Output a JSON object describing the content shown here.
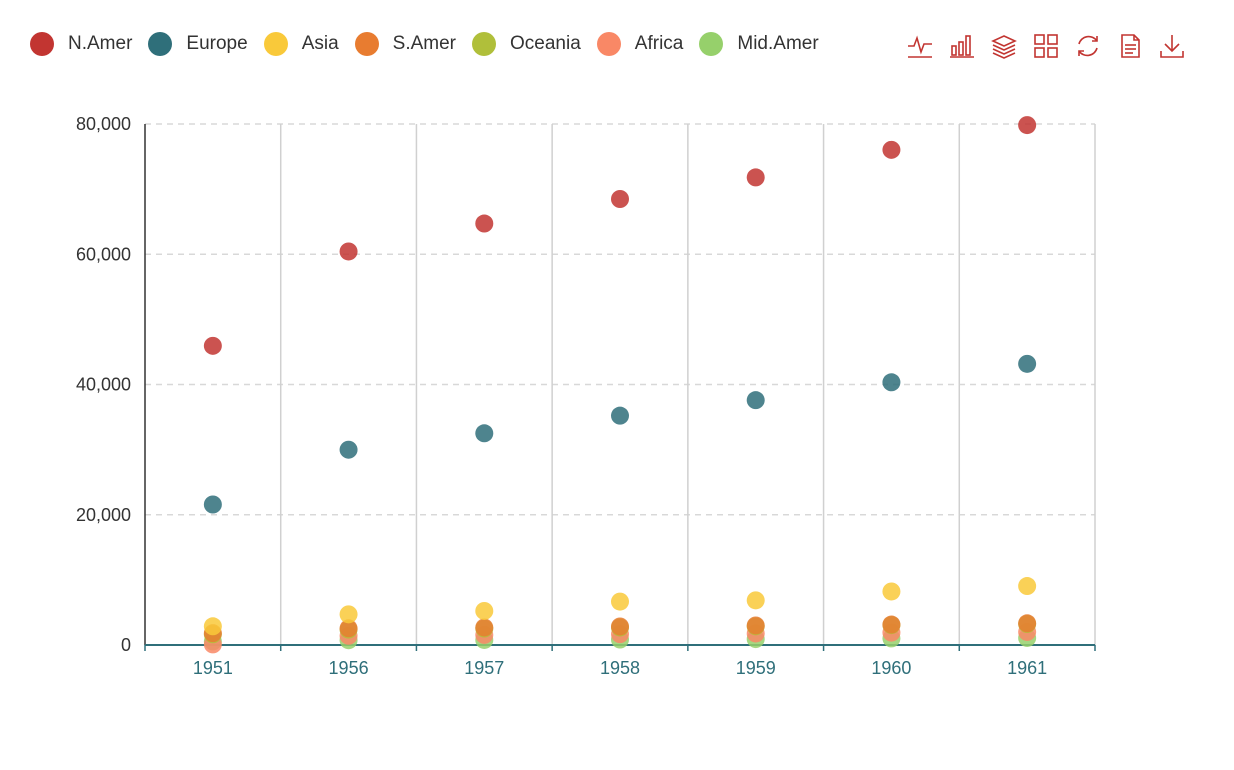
{
  "chart_data": {
    "type": "scatter",
    "categories": [
      "1951",
      "1956",
      "1957",
      "1958",
      "1959",
      "1960",
      "1961"
    ],
    "ylim": [
      0,
      80000
    ],
    "yticks": [
      0,
      20000,
      40000,
      60000,
      80000
    ],
    "ytick_labels": [
      "0",
      "20,000",
      "40,000",
      "60,000",
      "80,000"
    ],
    "grid": "horizontal dashed, vertical category separators",
    "legend_position": "top-left",
    "series": [
      {
        "name": "N.Amer",
        "color": "#c23531",
        "values": [
          45939,
          60423,
          64721,
          68484,
          71799,
          76036,
          79831
        ]
      },
      {
        "name": "Europe",
        "color": "#2f6f7a",
        "values": [
          21574,
          29990,
          32510,
          35218,
          37598,
          40341,
          43173
        ]
      },
      {
        "name": "Asia",
        "color": "#f9c93a",
        "values": [
          2876,
          4708,
          5230,
          6662,
          6856,
          8220,
          9053
        ]
      },
      {
        "name": "S.Amer",
        "color": "#e87c30",
        "values": [
          1815,
          2568,
          2695,
          2845,
          3000,
          3145,
          3338
        ]
      },
      {
        "name": "Oceania",
        "color": "#b0bf3a",
        "values": [
          1646,
          2366,
          2526,
          2691,
          2868,
          3054,
          3224
        ]
      },
      {
        "name": "Africa",
        "color": "#f98866",
        "values": [
          89,
          1411,
          1546,
          1663,
          1769,
          1905,
          2005
        ]
      },
      {
        "name": "Mid.Amer",
        "color": "#96d06b",
        "values": [
          555,
          733,
          773,
          836,
          911,
          1008,
          1076
        ]
      }
    ]
  },
  "toolbox": {
    "icons": [
      "line-chart-icon",
      "bar-chart-icon",
      "stack-icon",
      "tiled-icon",
      "restore-icon",
      "data-view-icon",
      "save-image-icon"
    ],
    "color": "#c23531"
  }
}
